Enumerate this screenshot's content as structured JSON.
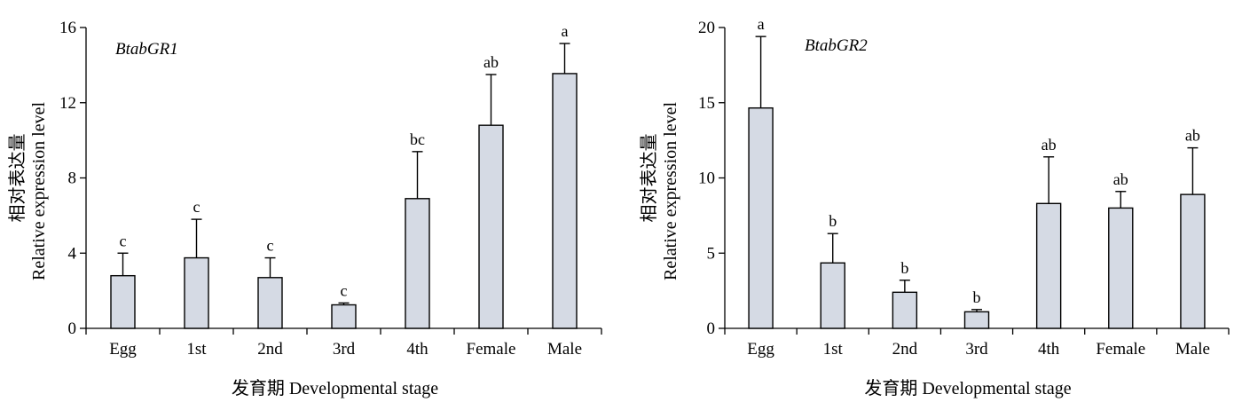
{
  "chart_data": [
    {
      "type": "bar",
      "gene_label": "BtabGR1",
      "categories": [
        "Egg",
        "1st",
        "2nd",
        "3rd",
        "4th",
        "Female",
        "Male"
      ],
      "values": [
        2.8,
        3.75,
        2.7,
        1.25,
        6.9,
        10.8,
        13.55
      ],
      "errors": [
        1.2,
        2.05,
        1.05,
        0.1,
        2.5,
        2.7,
        1.6
      ],
      "significance": [
        "c",
        "c",
        "c",
        "c",
        "bc",
        "ab",
        "a"
      ],
      "ylim": [
        0,
        16
      ],
      "yticks": [
        "0",
        "4",
        "8",
        "12",
        "16"
      ],
      "ylabel_cn": "相对表达量",
      "ylabel_en": "Relative expression level",
      "xlabel": "发育期 Developmental stage",
      "bar_color": "#d5dae4"
    },
    {
      "type": "bar",
      "gene_label": "BtabGR2",
      "categories": [
        "Egg",
        "1st",
        "2nd",
        "3rd",
        "4th",
        "Female",
        "Male"
      ],
      "values": [
        14.65,
        4.35,
        2.4,
        1.1,
        8.3,
        8.0,
        8.9
      ],
      "errors": [
        4.75,
        1.95,
        0.8,
        0.15,
        3.1,
        1.1,
        3.1
      ],
      "significance": [
        "a",
        "b",
        "b",
        "b",
        "ab",
        "ab",
        "ab"
      ],
      "ylim": [
        0,
        20
      ],
      "yticks": [
        "0",
        "5",
        "10",
        "15",
        "20"
      ],
      "ylabel_cn": "相对表达量",
      "ylabel_en": "Relative expression level",
      "xlabel": "发育期 Developmental stage",
      "bar_color": "#d5dae4"
    }
  ]
}
